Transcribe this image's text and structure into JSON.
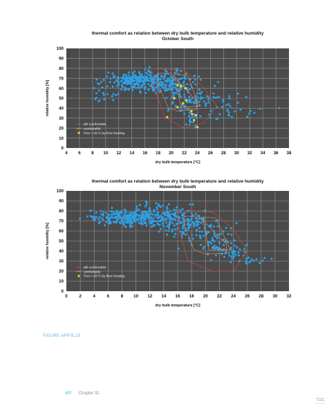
{
  "chart_data": [
    {
      "type": "scatter",
      "title": "thermal comfort as relation between dry bulb temperature and relative humidity",
      "subtitle": "October South",
      "xlabel": "dry bulb temperature [°C]",
      "ylabel": "relative humidity [%]",
      "xlim": [
        4,
        38
      ],
      "ylim": [
        0,
        100
      ],
      "xticks": [
        "4",
        "6",
        "8",
        "10",
        "12",
        "14",
        "16",
        "18",
        "20",
        "22",
        "24",
        "26",
        "28",
        "30",
        "32",
        "34",
        "36",
        "38"
      ],
      "yticks": [
        "0",
        "10",
        "20",
        "30",
        "40",
        "50",
        "60",
        "70",
        "80",
        "90",
        "100"
      ],
      "grid": true,
      "legend_position": "bottom-left",
      "legend": [
        {
          "label": "still comfortable",
          "color": "#d14a43",
          "symbol": "line"
        },
        {
          "label": "comfortable",
          "color": "#e08a52",
          "symbol": "line"
        },
        {
          "label": "Tres > 25°C by floor heating",
          "color": "#f2d13b",
          "symbol": "dot"
        }
      ],
      "series": [
        {
          "name": "",
          "color": "#2f9fe3",
          "clusters": [
            {
              "cx": 15,
              "cy": 68,
              "sx": 2.2,
              "sy": 5,
              "n": 230
            },
            {
              "cx": 19.5,
              "cy": 66,
              "sx": 1.8,
              "sy": 6,
              "n": 110
            },
            {
              "cx": 22.5,
              "cy": 52,
              "sx": 1.8,
              "sy": 11,
              "n": 80
            },
            {
              "cx": 9.5,
              "cy": 57,
              "sx": 1.6,
              "sy": 5,
              "n": 25
            },
            {
              "cx": 26.5,
              "cy": 46,
              "sx": 2.2,
              "sy": 6,
              "n": 35
            },
            {
              "cx": 23.3,
              "cy": 28,
              "sx": 0.6,
              "sy": 4,
              "n": 15
            },
            {
              "cx": 31,
              "cy": 34,
              "sx": 3,
              "sy": 3,
              "n": 15
            }
          ]
        },
        {
          "name": "",
          "color": "#f2d13b",
          "points": [
            [
              21,
              63
            ],
            [
              21.5,
              62
            ],
            [
              22.2,
              60
            ],
            [
              20.5,
              50
            ],
            [
              21.8,
              45
            ],
            [
              22.3,
              48
            ],
            [
              23.1,
              37
            ],
            [
              23.2,
              34
            ],
            [
              23.8,
              33
            ],
            [
              23.5,
              28
            ],
            [
              24,
              21
            ],
            [
              19.4,
              31
            ],
            [
              21,
              41
            ]
          ]
        }
      ],
      "zones": [
        {
          "name": "still comfortable",
          "color": "#d14a43",
          "points": [
            [
              17,
              80
            ],
            [
              22,
              78
            ],
            [
              24.8,
              62
            ],
            [
              27,
              42
            ],
            [
              25,
              25
            ],
            [
              22,
              20
            ],
            [
              19,
              31
            ],
            [
              17.6,
              57
            ]
          ]
        },
        {
          "name": "comfortable",
          "color": "#e08a52",
          "points": [
            [
              18,
              75
            ],
            [
              20,
              75
            ],
            [
              23.8,
              48
            ],
            [
              24,
              39
            ],
            [
              21,
              37
            ],
            [
              19.5,
              41
            ],
            [
              18,
              64
            ]
          ]
        },
        {
          "name": "",
          "color": "#e08a52",
          "points": [
            [
              20.5,
              74
            ],
            [
              22.5,
              73
            ],
            [
              24.3,
              42
            ],
            [
              21.5,
              41
            ]
          ]
        }
      ]
    },
    {
      "type": "scatter",
      "title": "thermal comfort as relation between dry bulb temperature and relative humidity",
      "subtitle": "November South",
      "xlabel": "dry bulb temperature [°C]",
      "ylabel": "relative humidity [%]",
      "xlim": [
        0,
        32
      ],
      "ylim": [
        0,
        100
      ],
      "xticks": [
        "0",
        "2",
        "4",
        "6",
        "8",
        "10",
        "12",
        "14",
        "16",
        "18",
        "20",
        "22",
        "24",
        "26",
        "28",
        "30",
        "32"
      ],
      "yticks": [
        "0",
        "10",
        "20",
        "30",
        "40",
        "50",
        "60",
        "70",
        "80",
        "90",
        "100"
      ],
      "grid": true,
      "legend_position": "bottom-left",
      "legend": [
        {
          "label": "still comfortable",
          "color": "#d14a43",
          "symbol": "line"
        },
        {
          "label": "comfortable",
          "color": "#e08a52",
          "symbol": "line"
        },
        {
          "label": "Tres > 25°C by floor heating",
          "color": "#f2d13b",
          "symbol": "dot"
        }
      ],
      "series": [
        {
          "name": "",
          "color": "#2f9fe3",
          "clusters": [
            {
              "cx": 8,
              "cy": 74,
              "sx": 2.2,
              "sy": 4,
              "n": 180
            },
            {
              "cx": 13,
              "cy": 75,
              "sx": 2.4,
              "sy": 6,
              "n": 190
            },
            {
              "cx": 17.5,
              "cy": 68,
              "sx": 1.8,
              "sy": 7,
              "n": 90
            },
            {
              "cx": 21,
              "cy": 50,
              "sx": 1.8,
              "sy": 9,
              "n": 70
            },
            {
              "cx": 24,
              "cy": 38,
              "sx": 1.2,
              "sy": 5,
              "n": 35
            },
            {
              "cx": 26.5,
              "cy": 31,
              "sx": 1.5,
              "sy": 2,
              "n": 15
            }
          ]
        },
        {
          "name": "",
          "color": "#f2d13b",
          "points": []
        }
      ],
      "zones": [
        {
          "name": "still comfortable",
          "color": "#d14a43",
          "points": [
            [
              16,
              80
            ],
            [
              21,
              79
            ],
            [
              24,
              62
            ],
            [
              26,
              40
            ],
            [
              24,
              20
            ],
            [
              21,
              20
            ],
            [
              17.5,
              30
            ],
            [
              16.3,
              58
            ]
          ]
        },
        {
          "name": "comfortable",
          "color": "#e08a52",
          "points": [
            [
              17,
              75
            ],
            [
              19,
              75
            ],
            [
              23,
              47
            ],
            [
              23,
              38
            ],
            [
              20,
              37
            ],
            [
              18.4,
              41
            ],
            [
              17,
              64
            ]
          ]
        },
        {
          "name": "",
          "color": "#e08a52",
          "points": [
            [
              19.5,
              74
            ],
            [
              21.5,
              73
            ],
            [
              23.5,
              42
            ],
            [
              20.5,
              41
            ]
          ]
        }
      ]
    }
  ],
  "caption": "FIGURE APP B.15",
  "footer": {
    "page_number": "497",
    "chapter": "Chapter 02"
  },
  "toc_label": "TOC",
  "colors": {
    "plot_background": "#4a4a4a",
    "grid": "#9a9a9a",
    "accent": "#58b4df"
  }
}
